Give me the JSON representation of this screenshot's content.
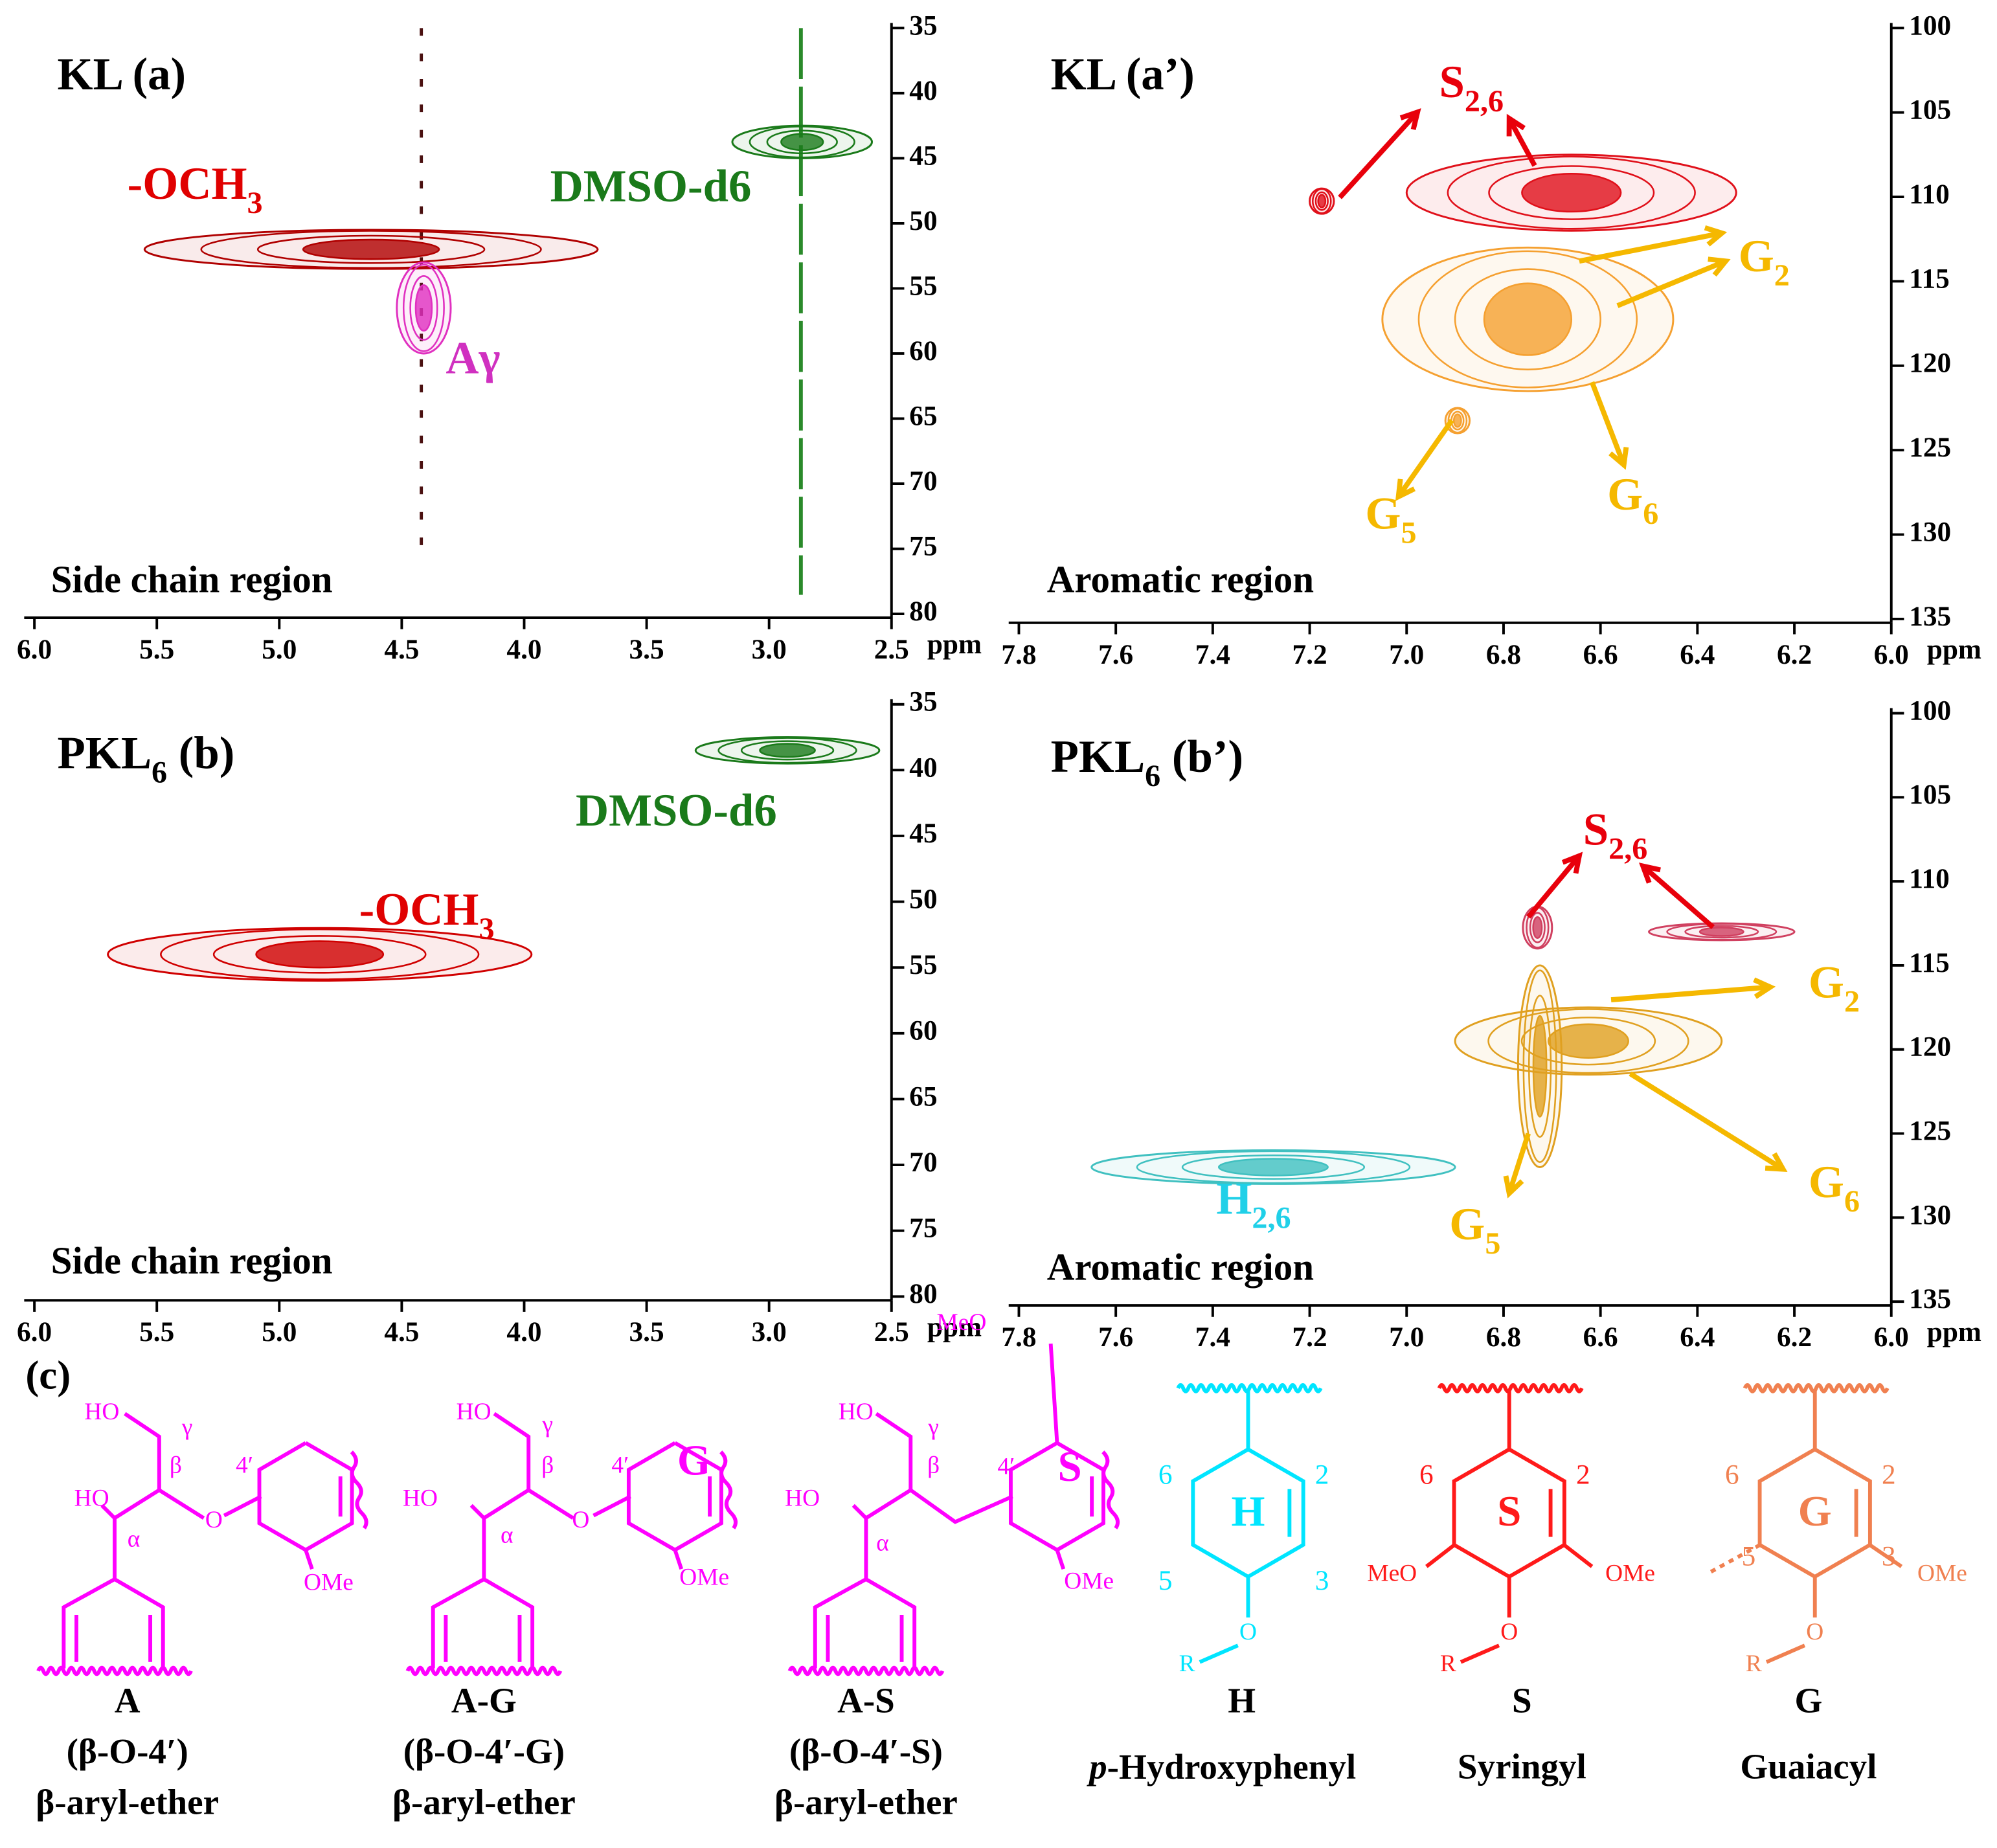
{
  "chart_data": [
    {
      "type": "contour",
      "title": [
        "KL (a)"
      ],
      "region": "Side chain region",
      "x_label": "ppm",
      "xlim": [
        6.0,
        2.5
      ],
      "xticks": [
        {
          "value": 6,
          "label": "6.0"
        },
        5.5,
        {
          "value": 5,
          "label": "5.0"
        },
        4.5,
        {
          "value": 4,
          "label": "4.0"
        },
        3.5,
        {
          "value": 3,
          "label": "3.0"
        },
        2.5
      ],
      "ylim": [
        35,
        80
      ],
      "yticks": [
        35,
        40,
        45,
        50,
        55,
        60,
        65,
        70,
        75,
        80
      ],
      "peaks": [
        {
          "x": [
            5.55,
            3.7
          ],
          "y": [
            50.5,
            53.5
          ],
          "color": "#b00000"
        },
        {
          "x": [
            4.52,
            4.3
          ],
          "y": [
            53,
            60
          ],
          "color": "#e030c0"
        },
        {
          "x": [
            3.15,
            2.58
          ],
          "y": [
            42.5,
            45
          ],
          "color": "#1a7a1a"
        }
      ],
      "annotations": [
        {
          "text": [
            "-OCH",
            "3"
          ],
          "color": "#e00000"
        },
        {
          "text": [
            "DMSO-d6"
          ],
          "color": "#1a7a1a"
        },
        {
          "text": [
            "Aγ"
          ],
          "color": "#d030c0"
        }
      ]
    },
    {
      "type": "contour",
      "title": [
        "KL (a’)"
      ],
      "region": "Aromatic region",
      "x_label": "ppm",
      "xlim": [
        7.8,
        6.0
      ],
      "xticks": [
        7.8,
        7.6,
        7.4,
        7.2,
        {
          "value": 7,
          "label": "7.0"
        },
        6.8,
        6.6,
        6.4,
        6.2,
        {
          "value": 6,
          "label": "6.0"
        }
      ],
      "ylim": [
        100,
        135
      ],
      "yticks": [
        100,
        105,
        110,
        115,
        120,
        125,
        130,
        135
      ],
      "peaks": [
        {
          "x": [
            7.0,
            6.32
          ],
          "y": [
            107.5,
            112
          ],
          "color": "#e0101a"
        },
        {
          "x": [
            7.2,
            7.15
          ],
          "y": [
            109.5,
            111
          ],
          "color": "#e0101a"
        },
        {
          "x": [
            7.05,
            6.45
          ],
          "y": [
            113,
            121.5
          ],
          "color": "#f5a030"
        },
        {
          "x": [
            6.92,
            6.87
          ],
          "y": [
            122.5,
            124
          ],
          "color": "#f5a030"
        }
      ],
      "annotations": [
        {
          "text": [
            "S",
            "2,6"
          ],
          "color": "#e8000b"
        },
        {
          "text": [
            "G",
            "2"
          ],
          "color": "#f5b800"
        },
        {
          "text": [
            "G",
            "6"
          ],
          "color": "#f5b800"
        },
        {
          "text": [
            "G",
            "5"
          ],
          "color": "#f5b800"
        }
      ]
    },
    {
      "type": "contour",
      "title": [
        "PKL",
        "6",
        " (b)"
      ],
      "region": "Side chain region",
      "x_label": "ppm",
      "xlim": [
        6.0,
        2.5
      ],
      "xticks": [
        {
          "value": 6,
          "label": "6.0"
        },
        5.5,
        {
          "value": 5,
          "label": "5.0"
        },
        4.5,
        {
          "value": 4,
          "label": "4.0"
        },
        3.5,
        {
          "value": 3,
          "label": "3.0"
        },
        2.5
      ],
      "ylim": [
        35,
        80
      ],
      "yticks": [
        35,
        40,
        45,
        50,
        55,
        60,
        65,
        70,
        75,
        80
      ],
      "peaks": [
        {
          "x": [
            3.3,
            2.55
          ],
          "y": [
            37.5,
            39.5
          ],
          "color": "#1a7a1a"
        },
        {
          "x": [
            5.7,
            3.97
          ],
          "y": [
            52,
            56
          ],
          "color": "#d00000"
        }
      ],
      "annotations": [
        {
          "text": [
            "DMSO-d6"
          ],
          "color": "#1a7a1a"
        },
        {
          "text": [
            "-OCH",
            "3"
          ],
          "color": "#e00000"
        }
      ]
    },
    {
      "type": "contour",
      "title": [
        "PKL",
        "6",
        " (b’)"
      ],
      "region": "Aromatic region",
      "x_label": "ppm",
      "xlim": [
        7.8,
        6.0
      ],
      "xticks": [
        7.8,
        7.6,
        7.4,
        7.2,
        {
          "value": 7,
          "label": "7.0"
        },
        6.8,
        6.6,
        6.4,
        6.2,
        {
          "value": 6,
          "label": "6.0"
        }
      ],
      "ylim": [
        100,
        135
      ],
      "yticks": [
        100,
        105,
        110,
        115,
        120,
        125,
        130,
        135
      ],
      "peaks": [
        {
          "x": [
            6.5,
            6.2
          ],
          "y": [
            112.5,
            113.5
          ],
          "color": "#d04060"
        },
        {
          "x": [
            6.76,
            6.7
          ],
          "y": [
            111.5,
            114
          ],
          "color": "#d04060"
        },
        {
          "x": [
            6.9,
            6.35
          ],
          "y": [
            117.5,
            121.5
          ],
          "color": "#e0a020"
        },
        {
          "x": [
            6.77,
            6.68
          ],
          "y": [
            115,
            127
          ],
          "color": "#e0a020"
        },
        {
          "x": [
            7.65,
            6.9
          ],
          "y": [
            126,
            128
          ],
          "color": "#40c0c0"
        }
      ],
      "annotations": [
        {
          "text": [
            "S",
            "2,6"
          ],
          "color": "#e8000b"
        },
        {
          "text": [
            "G",
            "2"
          ],
          "color": "#f5b800"
        },
        {
          "text": [
            "G",
            "6"
          ],
          "color": "#f5b800"
        },
        {
          "text": [
            "G",
            "5"
          ],
          "color": "#f5b800"
        },
        {
          "text": [
            "H",
            "2,6"
          ],
          "color": "#20d0e8"
        }
      ]
    }
  ],
  "structures": {
    "panel_label": "(c)",
    "units": [
      {
        "color": "#ff00ff",
        "labels": [
          "HO",
          "γ",
          "β",
          "HO",
          "α",
          "O",
          "4′",
          "OMe"
        ],
        "caption": [
          "A",
          "(β-O-4′)",
          "β-aryl-ether"
        ]
      },
      {
        "color": "#ff00ff",
        "labels": [
          "HO",
          "γ",
          "β",
          "HO",
          "α",
          "O",
          "4′",
          "G",
          "OMe"
        ],
        "caption": [
          "A-G",
          "(β-O-4′-G)",
          "β-aryl-ether"
        ]
      },
      {
        "color": "#ff00ff",
        "labels": [
          "HO",
          "γ",
          "β",
          "HO",
          "α",
          "MeO",
          "4′",
          "S",
          "OMe"
        ],
        "caption": [
          "A-S",
          "(β-O-4′-S)",
          "β-aryl-ether"
        ]
      },
      {
        "color": "#00e5ff",
        "labels": [
          "6",
          "2",
          "H",
          "5",
          "3",
          "O",
          "R"
        ],
        "caption": [
          "H",
          "p-Hydroxyphenyl"
        ]
      },
      {
        "color": "#ff1a1a",
        "labels": [
          "6",
          "2",
          "S",
          "MeO",
          "OMe",
          "O",
          "R"
        ],
        "caption": [
          "S",
          "Syringyl"
        ]
      },
      {
        "color": "#f08050",
        "labels": [
          "6",
          "2",
          "G",
          "5",
          "3",
          "OMe",
          "O",
          "R"
        ],
        "caption": [
          "G",
          "Guaiacyl"
        ]
      }
    ]
  }
}
